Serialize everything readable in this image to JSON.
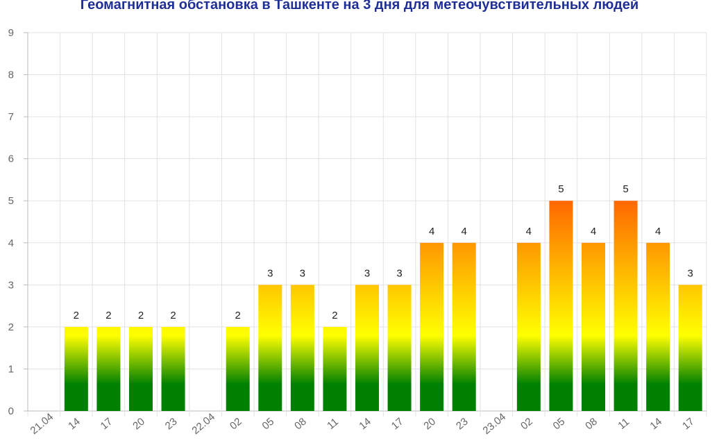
{
  "chart_data": {
    "type": "bar",
    "title": "Геомагнитная обстановка в Ташкенте на 3 дня для метеочувствительных людей",
    "ylim": [
      0,
      9
    ],
    "yticks": [
      "0",
      "1",
      "2",
      "3",
      "4",
      "5",
      "6",
      "7",
      "8",
      "9"
    ],
    "grid": true,
    "categories": [
      "21.04",
      "14",
      "17",
      "20",
      "23",
      "22.04",
      "02",
      "05",
      "08",
      "11",
      "14",
      "17",
      "20",
      "23",
      "23.04",
      "02",
      "05",
      "08",
      "11",
      "14",
      "17"
    ],
    "values": [
      null,
      2,
      2,
      2,
      2,
      null,
      2,
      3,
      3,
      2,
      3,
      3,
      4,
      4,
      null,
      4,
      5,
      4,
      5,
      4,
      3
    ],
    "colors": {
      "low": "#008000",
      "mid": "#ffff00",
      "high": "#ff6600",
      "title": "#1f2f96"
    }
  }
}
